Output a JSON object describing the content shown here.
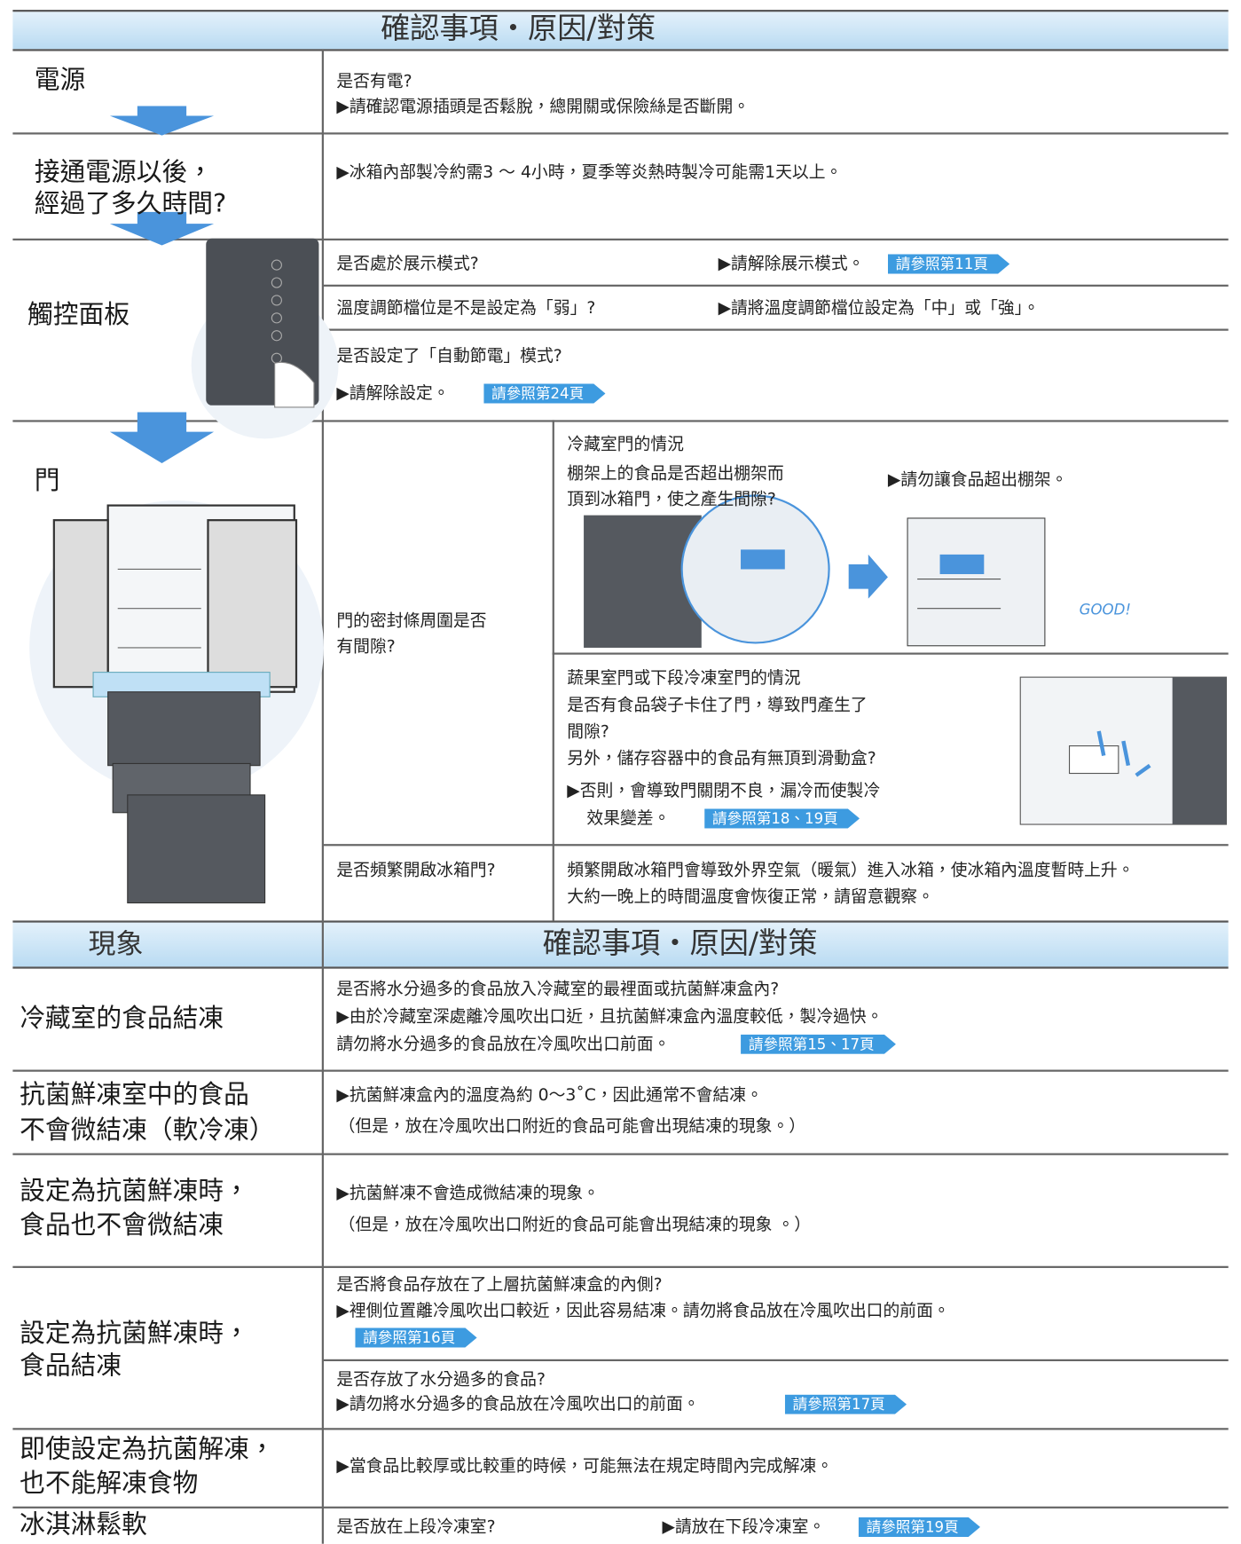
{
  "header": {
    "col2": "確認事項・原因/對策"
  },
  "rows": [
    {
      "label": "電源",
      "check": "是否有電?",
      "action": "▶請確認電源插頭是否鬆脫，總開關或保險絲是否斷開。"
    },
    {
      "label_lines": [
        "接通電源以後，",
        "經過了多久時間?"
      ],
      "action": "▶冰箱內部製冷約需3 ～ 4小時，夏季等炎熱時製冷可能需1天以上。"
    },
    {
      "label": "觸控面板",
      "items": [
        {
          "check": "是否處於展示模式?",
          "action": "▶請解除展示模式。",
          "ref": "請參照第11頁"
        },
        {
          "check": "溫度調節檔位是不是設定為「弱」?",
          "action": "▶請將溫度調節檔位設定為「中」或「強」。"
        },
        {
          "check": "是否設定了「自動節電」模式?",
          "action": "▶請解除設定。",
          "ref": "請參照第24頁"
        }
      ]
    },
    {
      "label": "門",
      "items": [
        {
          "check_lines": [
            "門的密封條周圍是否",
            "有間隙?"
          ],
          "cases": [
            {
              "title": "冷藏室門的情況",
              "question_lines": [
                "棚架上的食品是否超出棚架而",
                "頂到冰箱門，使之產生間隙?"
              ],
              "action": "▶請勿讓食品超出棚架。",
              "illustration_text": "GOOD!"
            },
            {
              "title": "蔬果室門或下段冷凍室門的情況",
              "question_lines": [
                "是否有食品袋子卡住了門，導致門產生了",
                "間隙?",
                "另外，儲存容器中的食品有無頂到滑動盒?"
              ],
              "action_lines": [
                "▶否則，會導致門關閉不良，漏冷而使製冷",
                "效果變差。"
              ],
              "ref": "請參照第18、19頁"
            }
          ]
        },
        {
          "check": "是否頻繁開啟冰箱門?",
          "action_lines": [
            "頻繁開啟冰箱門會導致外界空氣（暖氣）進入冰箱，使冰箱內溫度暫時上升。",
            "大約一晚上的時間溫度會恢復正常，請留意觀察。"
          ]
        }
      ]
    }
  ],
  "section2": {
    "header": {
      "col1": "現象",
      "col2": "確認事項・原因/對策"
    },
    "rows": [
      {
        "label": "冷藏室的食品結凍",
        "lines": [
          "是否將水分過多的食品放入冷藏室的最裡面或抗菌鮮凍盒內?",
          "▶由於冷藏室深處離冷風吹出口近，且抗菌鮮凍盒內溫度較低，製冷過快。",
          "請勿將水分過多的食品放在冷風吹出口前面。"
        ],
        "ref": "請參照第15、17頁"
      },
      {
        "label_lines": [
          "抗菌鮮凍室中的食品",
          "不會微結凍（軟冷凍）"
        ],
        "lines": [
          "▶抗菌鮮凍盒內的溫度為約 0～3˚C，因此通常不會結凍。",
          "（但是，放在冷風吹出口附近的食品可能會出現結凍的現象。）"
        ]
      },
      {
        "label_lines": [
          "設定為抗菌鮮凍時，",
          "食品也不會微結凍"
        ],
        "lines": [
          "▶抗菌鮮凍不會造成微結凍的現象。",
          "（但是，放在冷風吹出口附近的食品可能會出現結凍的現象 。）"
        ]
      },
      {
        "label_lines": [
          "設定為抗菌鮮凍時，",
          "食品結凍"
        ],
        "items": [
          {
            "check": "是否將食品存放在了上層抗菌鮮凍盒的內側?",
            "action": "▶裡側位置離冷風吹出口較近，因此容易結凍。請勿將食品放在冷風吹出口的前面。",
            "ref": "請參照第16頁"
          },
          {
            "check": "是否存放了水分過多的食品?",
            "action": "▶請勿將水分過多的食品放在冷風吹出口的前面。",
            "ref": "請參照第17頁"
          }
        ]
      },
      {
        "label_lines": [
          "即使設定為抗菌解凍，",
          "也不能解凍食物"
        ],
        "action": "▶當食品比較厚或比較重的時候，可能無法在規定時間內完成解凍。"
      },
      {
        "label": "冰淇淋鬆軟",
        "check": "是否放在上段冷凍室?",
        "action": "▶請放在下段冷凍室。",
        "ref": "請參照第19頁"
      }
    ]
  }
}
